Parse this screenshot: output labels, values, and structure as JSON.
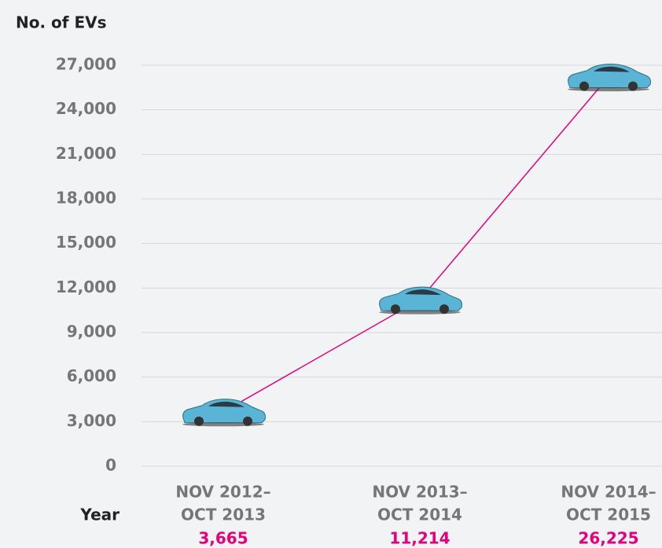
{
  "chart_data": {
    "type": "line",
    "y_label": "No. of EVs",
    "x_label": "Year",
    "categories": [
      [
        "NOV 2012–",
        "OCT 2013"
      ],
      [
        "NOV 2013–",
        "OCT 2014"
      ],
      [
        "NOV 2014–",
        "OCT 2015"
      ]
    ],
    "values": [
      3665,
      11214,
      26225
    ],
    "value_labels": [
      "3,665",
      "11,214",
      "26,225"
    ],
    "color": "#e6007e",
    "ylim": [
      0,
      27000
    ],
    "yticks": [
      0,
      {
        "value": 3000,
        "label": "3,000"
      },
      {
        "value": 6000,
        "label": "6,000"
      },
      {
        "value": 9000,
        "label": "9,000"
      },
      {
        "value": 12000,
        "label": "12,000"
      },
      {
        "value": 15000,
        "label": "15,000"
      },
      {
        "value": 18000,
        "label": "18,000"
      },
      {
        "value": 21000,
        "label": "21,000"
      },
      {
        "value": 24000,
        "label": "24,000"
      },
      {
        "value": 27000,
        "label": "27,000"
      }
    ],
    "grid": true
  }
}
